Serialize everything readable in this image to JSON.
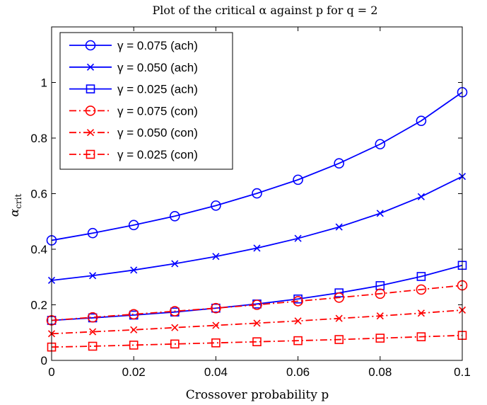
{
  "chart_data": {
    "type": "line",
    "title": "Plot of the critical α against p for q = 2",
    "xlabel": "Crossover probability p",
    "ylabel": "α",
    "ylabel_sub": "crit",
    "xlim": [
      0,
      0.1
    ],
    "ylim": [
      0,
      1.2
    ],
    "xticks": [
      0,
      0.02,
      0.04,
      0.06,
      0.08,
      0.1
    ],
    "xtick_labels": [
      "0",
      "0.02",
      "0.04",
      "0.06",
      "0.08",
      "0.1"
    ],
    "yticks": [
      0,
      0.2,
      0.4,
      0.6,
      0.8,
      1
    ],
    "ytick_labels": [
      "0",
      "0.2",
      "0.4",
      "0.6",
      "0.8",
      "1"
    ],
    "grid": false,
    "legend_position": "top-left",
    "x": [
      0,
      0.01,
      0.02,
      0.03,
      0.04,
      0.05,
      0.06,
      0.07,
      0.08,
      0.09,
      0.1
    ],
    "series": [
      {
        "name": "γ = 0.075 (ach)",
        "color": "#0000ff",
        "marker": "circle",
        "dash": "solid",
        "values": [
          0.432,
          0.458,
          0.487,
          0.519,
          0.557,
          0.601,
          0.65,
          0.709,
          0.778,
          0.862,
          0.965
        ]
      },
      {
        "name": "γ = 0.050 (ach)",
        "color": "#0000ff",
        "marker": "x",
        "dash": "solid",
        "values": [
          0.288,
          0.305,
          0.325,
          0.348,
          0.374,
          0.404,
          0.439,
          0.48,
          0.529,
          0.589,
          0.662
        ]
      },
      {
        "name": "γ = 0.025 (ach)",
        "color": "#0000ff",
        "marker": "square",
        "dash": "solid",
        "values": [
          0.144,
          0.153,
          0.163,
          0.174,
          0.188,
          0.203,
          0.221,
          0.243,
          0.269,
          0.302,
          0.342
        ]
      },
      {
        "name": "γ = 0.075 (con)",
        "color": "#ff0000",
        "marker": "circle",
        "dash": "dashdot",
        "values": [
          0.144,
          0.155,
          0.166,
          0.177,
          0.188,
          0.2,
          0.213,
          0.226,
          0.24,
          0.255,
          0.27
        ]
      },
      {
        "name": "γ = 0.050 (con)",
        "color": "#ff0000",
        "marker": "x",
        "dash": "dashdot",
        "values": [
          0.096,
          0.103,
          0.11,
          0.118,
          0.126,
          0.134,
          0.142,
          0.151,
          0.16,
          0.17,
          0.181
        ]
      },
      {
        "name": "γ = 0.025 (con)",
        "color": "#ff0000",
        "marker": "square",
        "dash": "dashdot",
        "values": [
          0.048,
          0.051,
          0.055,
          0.059,
          0.063,
          0.067,
          0.071,
          0.075,
          0.08,
          0.085,
          0.09
        ]
      }
    ]
  }
}
